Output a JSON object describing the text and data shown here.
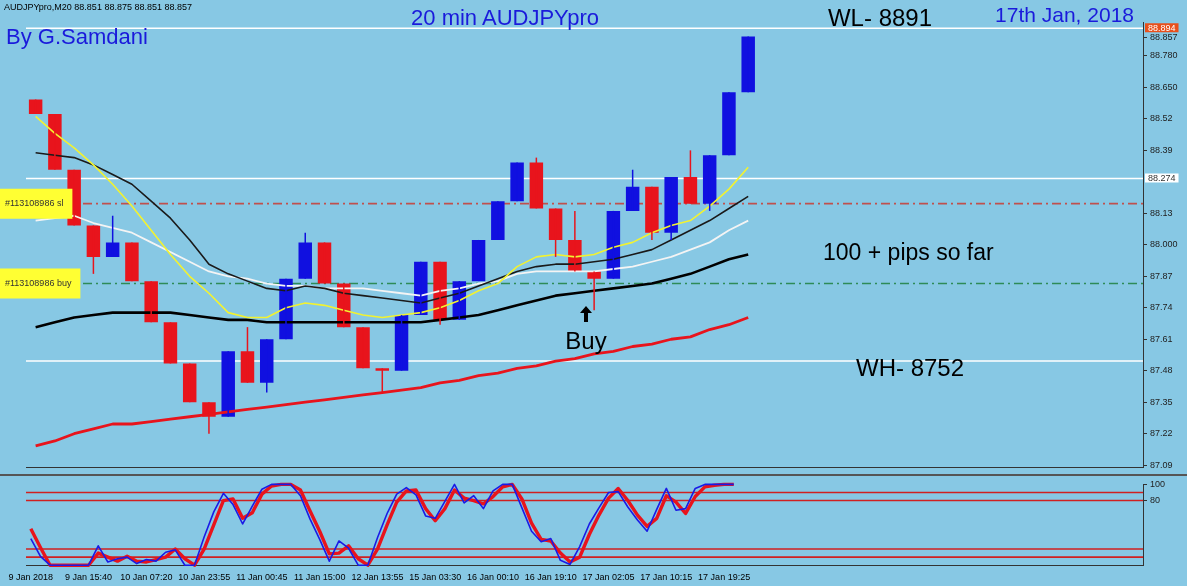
{
  "chart_data": [
    {
      "type": "candlestick",
      "title": "20 min AUDJPYpro",
      "tick_labels": "y",
      "grid": false,
      "legend": false,
      "marker": "none",
      "line_style": "solid",
      "ylim": [
        87.08,
        88.92
      ],
      "yticks": [
        87.09,
        87.22,
        87.35,
        87.48,
        87.61,
        87.74,
        87.87,
        {
          "value": 88.0,
          "label": "88.000"
        },
        88.13,
        88.39,
        88.52,
        {
          "value": 88.65,
          "label": "88.650"
        },
        {
          "value": 88.78,
          "label": "88.780"
        },
        88.857
      ],
      "categories": [
        null,
        null,
        null,
        null,
        null,
        null,
        null,
        null,
        null,
        null,
        null,
        null,
        null,
        null,
        null,
        null,
        null,
        null,
        null,
        null,
        null,
        null,
        null,
        null,
        null,
        null,
        null,
        null,
        null,
        null,
        null,
        null,
        null,
        null,
        null,
        null,
        null,
        null,
        null,
        null,
        null,
        null,
        null,
        null,
        null,
        null,
        null,
        null,
        null,
        null,
        null,
        null,
        null,
        null,
        null,
        null,
        null,
        null
      ],
      "ohlc": [
        [
          88.6,
          88.6,
          88.54,
          88.54
        ],
        [
          88.54,
          88.54,
          88.31,
          88.31
        ],
        [
          88.31,
          88.31,
          88.08,
          88.08
        ],
        [
          88.08,
          88.08,
          87.88,
          87.95
        ],
        [
          87.95,
          88.12,
          87.95,
          88.01
        ],
        [
          88.01,
          88.01,
          87.85,
          87.85
        ],
        [
          87.85,
          87.85,
          87.68,
          87.68
        ],
        [
          87.68,
          87.68,
          87.51,
          87.51
        ],
        [
          87.51,
          87.51,
          87.35,
          87.35
        ],
        [
          87.35,
          87.35,
          87.22,
          87.29
        ],
        [
          87.29,
          87.56,
          87.29,
          87.56
        ],
        [
          87.56,
          87.66,
          87.43,
          87.43
        ],
        [
          87.43,
          87.61,
          87.39,
          87.61
        ],
        [
          87.61,
          87.86,
          87.61,
          87.86
        ],
        [
          87.86,
          88.05,
          87.86,
          88.01
        ],
        [
          88.01,
          88.01,
          87.84,
          87.84
        ],
        [
          87.84,
          87.84,
          87.66,
          87.66
        ],
        [
          87.66,
          87.66,
          87.49,
          87.49
        ],
        [
          87.49,
          87.49,
          87.39,
          87.48
        ],
        [
          87.48,
          87.71,
          87.48,
          87.71
        ],
        [
          87.71,
          87.93,
          87.71,
          87.93
        ],
        [
          87.93,
          87.93,
          87.67,
          87.69
        ],
        [
          87.69,
          87.85,
          87.69,
          87.85
        ],
        [
          87.85,
          88.02,
          87.85,
          88.02
        ],
        [
          88.02,
          88.18,
          88.02,
          88.18
        ],
        [
          88.18,
          88.34,
          88.18,
          88.34
        ],
        [
          88.34,
          88.36,
          88.15,
          88.15
        ],
        [
          88.15,
          88.15,
          87.95,
          88.02
        ],
        [
          88.02,
          88.14,
          87.89,
          87.89
        ],
        [
          87.89,
          87.89,
          87.73,
          87.86
        ],
        [
          87.86,
          88.14,
          87.86,
          88.14
        ],
        [
          88.14,
          88.31,
          88.14,
          88.24
        ],
        [
          88.24,
          88.24,
          88.02,
          88.05
        ],
        [
          88.05,
          88.28,
          88.02,
          88.28
        ],
        [
          88.28,
          88.39,
          88.17,
          88.17
        ],
        [
          88.17,
          88.37,
          88.14,
          88.37
        ],
        [
          88.37,
          88.63,
          88.37,
          88.63
        ],
        [
          88.63,
          88.86,
          88.63,
          88.86
        ],
        null,
        null,
        null,
        null,
        null,
        null,
        null,
        null,
        null,
        null,
        null,
        null,
        null,
        null,
        null,
        null,
        null,
        null,
        null,
        null
      ],
      "colors": [
        "#e8141c",
        "#e8141c",
        "#e8141c",
        "#e8141c",
        "#1010e0",
        "#e8141c",
        "#e8141c",
        "#e8141c",
        "#e8141c",
        "#e8141c",
        "#1010e0",
        "#e8141c",
        "#1010e0",
        "#1010e0",
        "#1010e0",
        "#e8141c",
        "#e8141c",
        "#e8141c",
        "#e8141c",
        "#1010e0",
        "#1010e0",
        "#e8141c",
        "#1010e0",
        "#1010e0",
        "#1010e0",
        "#1010e0",
        "#e8141c",
        "#e8141c",
        "#e8141c",
        "#e8141c",
        "#1010e0",
        "#1010e0",
        "#e8141c",
        "#1010e0",
        "#e8141c",
        "#1010e0",
        "#1010e0",
        "#1010e0",
        null,
        null,
        null,
        null,
        null,
        null,
        null,
        null,
        null,
        null,
        null,
        null,
        null,
        null,
        null,
        null,
        null,
        null,
        null,
        null
      ],
      "series": [
        {
          "type": "line",
          "color": "#f2f230",
          "values": [
            88.53,
            88.46,
            88.4,
            88.33,
            88.25,
            88.16,
            88.06,
            87.96,
            87.87,
            87.8,
            87.72,
            87.7,
            87.7,
            87.74,
            87.76,
            87.75,
            87.73,
            87.71,
            87.7,
            87.71,
            87.72,
            87.74,
            87.77,
            87.81,
            87.84,
            87.91,
            87.95,
            87.96,
            87.95,
            87.96,
            87.99,
            88.01,
            88.05,
            88.08,
            88.1,
            88.16,
            88.23,
            88.32,
            null,
            null,
            null,
            null,
            null,
            null,
            null,
            null,
            null,
            null,
            null,
            null,
            null,
            null,
            null,
            null,
            null,
            null,
            null,
            null
          ]
        },
        {
          "type": "line",
          "color": "#1a1a1a",
          "values": [
            88.38,
            88.37,
            88.36,
            88.33,
            88.29,
            88.25,
            88.18,
            88.11,
            88.02,
            87.92,
            87.88,
            87.85,
            87.82,
            87.81,
            87.83,
            87.82,
            87.8,
            87.79,
            87.78,
            87.77,
            87.76,
            87.78,
            87.8,
            87.83,
            87.86,
            87.89,
            87.91,
            87.92,
            87.92,
            87.93,
            87.94,
            87.96,
            87.98,
            88.02,
            88.06,
            88.1,
            88.15,
            88.2,
            null,
            null,
            null,
            null,
            null,
            null,
            null,
            null,
            null,
            null,
            null,
            null,
            null,
            null,
            null,
            null,
            null,
            null,
            null,
            null
          ]
        },
        {
          "type": "line",
          "color": "#f4f4f4",
          "values": [
            88.1,
            88.11,
            88.12,
            88.09,
            88.07,
            88.05,
            88.01,
            87.97,
            87.93,
            87.89,
            87.87,
            87.86,
            87.84,
            87.83,
            87.83,
            87.82,
            87.82,
            87.82,
            87.81,
            87.8,
            87.79,
            87.81,
            87.82,
            87.84,
            87.85,
            87.88,
            87.89,
            87.89,
            87.89,
            87.89,
            87.9,
            87.91,
            87.93,
            87.95,
            87.98,
            88.01,
            88.06,
            88.1,
            null,
            null,
            null,
            null,
            null,
            null,
            null,
            null,
            null,
            null,
            null,
            null,
            null,
            null,
            null,
            null,
            null,
            null,
            null,
            null
          ]
        },
        {
          "type": "line",
          "color": "#000000",
          "values": [
            87.66,
            87.68,
            87.7,
            87.71,
            87.72,
            87.72,
            87.72,
            87.72,
            87.71,
            87.7,
            87.69,
            87.69,
            87.68,
            87.68,
            87.68,
            87.68,
            87.68,
            87.68,
            87.68,
            87.68,
            87.68,
            87.69,
            87.7,
            87.71,
            87.73,
            87.75,
            87.77,
            87.79,
            87.8,
            87.81,
            87.82,
            87.83,
            87.84,
            87.86,
            87.88,
            87.91,
            87.94,
            87.96,
            null,
            null,
            null,
            null,
            null,
            null,
            null,
            null,
            null,
            null,
            null,
            null,
            null,
            null,
            null,
            null,
            null,
            null,
            null,
            null
          ]
        },
        {
          "type": "line",
          "color": "#e8141c",
          "values": [
            87.17,
            87.19,
            87.22,
            87.24,
            87.26,
            87.26,
            87.27,
            87.28,
            87.29,
            87.3,
            87.31,
            87.32,
            87.33,
            87.34,
            87.35,
            87.36,
            87.37,
            87.38,
            87.39,
            87.4,
            87.41,
            87.43,
            87.44,
            87.46,
            87.47,
            87.49,
            87.5,
            87.52,
            87.53,
            87.55,
            87.56,
            87.58,
            87.59,
            87.61,
            87.62,
            87.65,
            87.67,
            87.7,
            null,
            null,
            null,
            null,
            null,
            null,
            null,
            null,
            null,
            null,
            null,
            null,
            null,
            null,
            null,
            null,
            null,
            null,
            null,
            null
          ]
        }
      ],
      "ref_lines": [
        {
          "axis": "y",
          "value": 88.894,
          "label": "88.894",
          "color": "#ffffff",
          "line_style": "solid"
        },
        {
          "axis": "y",
          "value": 88.274,
          "label": "88.274",
          "color": "#ffffff",
          "line_style": "solid"
        },
        {
          "axis": "y",
          "value": 87.52,
          "color": "#ffffff",
          "line_style": "solid"
        },
        {
          "axis": "y",
          "value": 88.17,
          "label": "#113108986 sl",
          "color": "#c0504d",
          "line_style": "dashed"
        },
        {
          "axis": "y",
          "value": 87.84,
          "label": "#113108986 buy",
          "color": "#2e8b57",
          "line_style": "dashed"
        }
      ],
      "annotations": [
        "AUDJPYpro,M20 88.851 88.875 88.851 88.857",
        "By G.Samdani",
        "17th Jan, 2018",
        "100 + pips so far",
        "WL- 8891",
        "WH- 8752",
        "Buy"
      ]
    },
    {
      "type": "line",
      "ylim": [
        0,
        100
      ],
      "yticks": [
        80,
        100
      ],
      "grid": false,
      "legend": false,
      "marker": "none",
      "line_style": "solid",
      "categories": [
        "9 Jan 2018",
        null,
        null,
        null,
        null,
        null,
        "9 Jan 15:40",
        null,
        null,
        null,
        null,
        null,
        "10 Jan 07:20",
        null,
        null,
        null,
        null,
        null,
        "10 Jan 23:55",
        null,
        null,
        null,
        null,
        null,
        "11 Jan 00:45",
        null,
        null,
        null,
        null,
        null,
        "11 Jan 15:00",
        null,
        null,
        null,
        null,
        null,
        "12 Jan 13:55",
        null,
        null,
        null,
        null,
        null,
        "15 Jan 03:30",
        null,
        null,
        null,
        null,
        null,
        "16 Jan 00:10",
        null,
        null,
        null,
        null,
        null,
        "16 Jan 19:10",
        null,
        null,
        null,
        null,
        null,
        "17 Jan 02:05",
        null,
        null,
        null,
        null,
        null,
        "17 Jan 10:15",
        null,
        null,
        null,
        null,
        null,
        "17 Jan 19:25",
        null,
        null,
        null,
        null,
        null,
        null,
        null,
        null,
        null,
        null,
        null,
        null,
        null,
        null,
        null,
        null,
        null,
        null,
        null,
        null,
        null,
        null,
        null,
        null,
        null,
        null,
        null,
        null,
        null,
        null,
        null,
        null,
        null,
        null,
        null,
        null,
        null,
        null,
        null,
        null,
        null,
        null,
        null
      ],
      "series": [
        {
          "type": "line",
          "color": "#1a1ae6",
          "values": [
            33,
            11,
            0,
            0,
            0,
            0,
            0,
            24,
            4,
            8,
            10,
            2,
            7,
            5,
            16,
            19,
            0,
            0,
            35,
            66,
            89,
            75,
            51,
            73,
            94,
            100,
            100,
            100,
            86,
            57,
            32,
            5,
            30,
            21,
            0,
            0,
            34,
            64,
            88,
            96,
            87,
            61,
            58,
            79,
            100,
            77,
            86,
            70,
            92,
            100,
            100,
            71,
            42,
            29,
            33,
            6,
            1,
            23,
            51,
            71,
            90,
            91,
            72,
            56,
            42,
            69,
            95,
            68,
            70,
            95,
            100,
            100,
            100,
            100,
            null,
            null,
            null,
            null,
            null,
            null,
            null,
            null,
            null,
            null,
            null,
            null,
            null,
            null,
            null,
            null,
            null,
            null,
            null,
            null,
            null,
            null,
            null,
            null,
            null,
            null,
            null,
            null,
            null,
            null,
            null,
            null,
            null,
            null,
            null,
            null,
            null,
            null,
            null,
            null,
            null,
            null
          ]
        },
        {
          "type": "line",
          "color": "#e8141c",
          "values": [
            45,
            22,
            0,
            0,
            0,
            0,
            0,
            15,
            10,
            5,
            11,
            5,
            4,
            7,
            10,
            20,
            8,
            0,
            20,
            50,
            80,
            82,
            58,
            65,
            88,
            98,
            100,
            100,
            93,
            67,
            42,
            14,
            15,
            24,
            8,
            0,
            20,
            50,
            78,
            92,
            93,
            70,
            55,
            70,
            93,
            83,
            80,
            76,
            85,
            97,
            100,
            82,
            52,
            32,
            30,
            15,
            4,
            10,
            38,
            62,
            83,
            95,
            80,
            62,
            48,
            58,
            86,
            78,
            64,
            85,
            97,
            99,
            100,
            100,
            null,
            null,
            null,
            null,
            null,
            null,
            null,
            null,
            null,
            null,
            null,
            null,
            null,
            null,
            null,
            null,
            null,
            null,
            null,
            null,
            null,
            null,
            null,
            null,
            null,
            null,
            null,
            null,
            null,
            null,
            null,
            null,
            null,
            null,
            null,
            null,
            null,
            null,
            null,
            null,
            null,
            null
          ]
        }
      ],
      "ref_lines": [
        {
          "axis": "y",
          "value": 90,
          "color": "#d02020",
          "line_style": "solid"
        },
        {
          "axis": "y",
          "value": 80,
          "color": "#d02020",
          "line_style": "solid"
        },
        {
          "axis": "y",
          "value": 20,
          "color": "#d02020",
          "line_style": "solid"
        },
        {
          "axis": "y",
          "value": 10,
          "color": "#d02020",
          "line_style": "solid"
        }
      ]
    }
  ]
}
